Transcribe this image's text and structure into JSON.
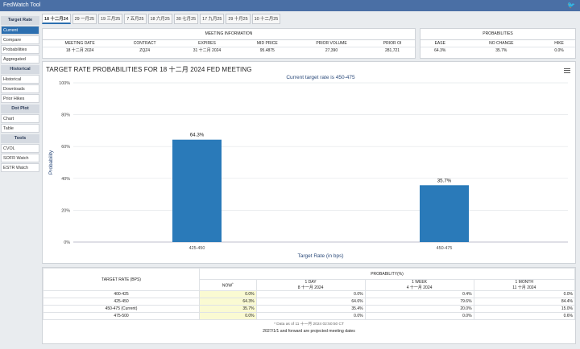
{
  "app": {
    "title": "FedWatch Tool"
  },
  "tabs": [
    "18 十二月24",
    "29 一月25",
    "19 三月25",
    "7 五月25",
    "18 六月25",
    "30 七月25",
    "17 九月25",
    "29 十月25",
    "10 十二月25"
  ],
  "sidebar": {
    "sections": [
      {
        "heading": "Target Rate",
        "items": [
          "Current",
          "Compare",
          "Probabilities",
          "Aggregated"
        ]
      },
      {
        "heading": "Historical",
        "items": [
          "Historical",
          "Downloads",
          "Prior Hikes"
        ]
      },
      {
        "heading": "Dot Plot",
        "items": [
          "Chart",
          "Table"
        ]
      },
      {
        "heading": "Tools",
        "items": [
          "CVOL",
          "SOFR Watch",
          "ESTR Watch"
        ]
      }
    ]
  },
  "meeting_info": {
    "title": "MEETING INFORMATION",
    "columns": [
      "MEETING DATE",
      "CONTRACT",
      "EXPIRES",
      "MID PRICE",
      "PRIOR VOLUME",
      "PRIOR OI"
    ],
    "values": [
      "18 十二月 2024",
      "ZQZ4",
      "31 十二月 2024",
      "95.4875",
      "27,390",
      "281,721"
    ]
  },
  "probabilities": {
    "title": "PROBABILITIES",
    "columns": [
      "EASE",
      "NO CHANGE",
      "HIKE"
    ],
    "values": [
      "64.3%",
      "35.7%",
      "0.0%"
    ]
  },
  "chart_data": {
    "type": "bar",
    "title": "TARGET RATE PROBABILITIES FOR 18 十二月 2024 FED MEETING",
    "subtitle": "Current target rate is 450-475",
    "xlabel": "Target Rate (in bps)",
    "ylabel": "Probability",
    "categories": [
      "425-450",
      "450-475"
    ],
    "values": [
      64.3,
      35.7
    ],
    "data_labels": [
      "64.3%",
      "35.7%"
    ],
    "yticks": [
      "0%",
      "20%",
      "40%",
      "60%",
      "80%",
      "100%"
    ],
    "ylim": [
      0,
      100
    ],
    "grid": true,
    "bar_color": "#2a7ab9"
  },
  "prob_table": {
    "target_rate_header": "TARGET RATE (BPS)",
    "prob_header": "PROBABILITY(%)",
    "now_label": "NOW",
    "now_marker": "*",
    "columns": [
      {
        "l1": "1 DAY",
        "l2": "8 十一月 2024"
      },
      {
        "l1": "1 WEEK",
        "l2": "4 十一月 2024"
      },
      {
        "l1": "1 MONTH",
        "l2": "11 十月 2024"
      }
    ],
    "rows": [
      {
        "rate": "400-425",
        "now": "0.0%",
        "d1": "0.0%",
        "w1": "0.4%",
        "m1": "0.0%"
      },
      {
        "rate": "425-450",
        "now": "64.3%",
        "d1": "64.6%",
        "w1": "79.6%",
        "m1": "84.4%"
      },
      {
        "rate": "450-475 (Current)",
        "now": "35.7%",
        "d1": "35.4%",
        "w1": "20.0%",
        "m1": "15.0%"
      },
      {
        "rate": "475-500",
        "now": "0.0%",
        "d1": "0.0%",
        "w1": "0.0%",
        "m1": "0.6%"
      }
    ],
    "footnote": "* Data as of 11 十一月 2024 02:50:50 CT"
  },
  "footer": {
    "note": "2027/1/1 and forward are projected meeting dates"
  }
}
